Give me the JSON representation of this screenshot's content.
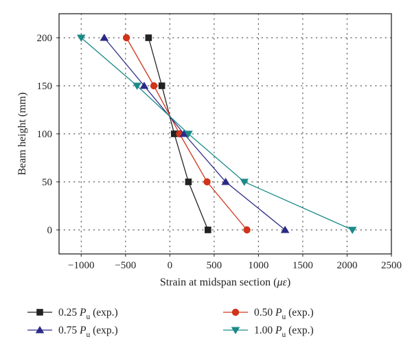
{
  "chart_data": {
    "type": "line",
    "xlabel_prefix": "Strain at midspan section (",
    "xlabel_unit": "με",
    "xlabel_suffix": ")",
    "ylabel": "Beam height (mm)",
    "xlim": [
      -1250,
      2500
    ],
    "ylim": [
      -25,
      225
    ],
    "xticks": [
      -1000,
      -500,
      0,
      500,
      1000,
      1500,
      2000,
      2500
    ],
    "yticks": [
      0,
      50,
      100,
      150,
      200
    ],
    "grid": true,
    "legend_position": "bottom",
    "series": [
      {
        "name": "0.25",
        "label_sub": "u",
        "label_suffix": " (exp.)",
        "color": "#222222",
        "marker": "square",
        "x": [
          430,
          210,
          50,
          -90,
          -240
        ],
        "y": [
          0,
          50,
          100,
          150,
          200
        ]
      },
      {
        "name": "0.50",
        "label_sub": "u",
        "label_suffix": " (exp.)",
        "color": "#d0341b",
        "marker": "circle",
        "x": [
          870,
          420,
          110,
          -180,
          -490
        ],
        "y": [
          0,
          50,
          100,
          150,
          200
        ]
      },
      {
        "name": "0.75",
        "label_sub": "u",
        "label_suffix": " (exp.)",
        "color": "#2b2a86",
        "marker": "triangle-up",
        "x": [
          1300,
          630,
          160,
          -290,
          -740
        ],
        "y": [
          0,
          50,
          100,
          150,
          200
        ]
      },
      {
        "name": "1.00",
        "label_sub": "u",
        "label_suffix": " (exp.)",
        "color": "#1a8a88",
        "marker": "triangle-down",
        "x": [
          2060,
          840,
          210,
          -370,
          -1000
        ],
        "y": [
          0,
          50,
          100,
          150,
          200
        ]
      }
    ]
  }
}
